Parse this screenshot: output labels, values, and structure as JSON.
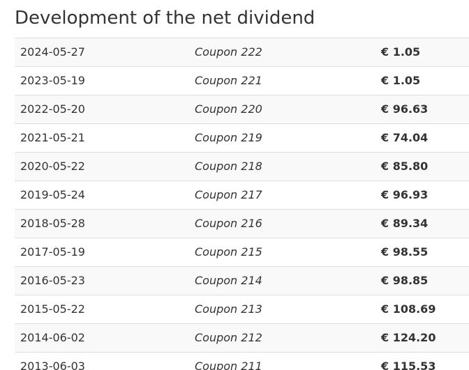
{
  "title": "Development of the net dividend",
  "dividends": [
    {
      "date": "2024-05-27",
      "coupon": "Coupon 222",
      "amount": "€ 1.05"
    },
    {
      "date": "2023-05-19",
      "coupon": "Coupon 221",
      "amount": "€ 1.05"
    },
    {
      "date": "2022-05-20",
      "coupon": "Coupon 220",
      "amount": "€ 96.63"
    },
    {
      "date": "2021-05-21",
      "coupon": "Coupon 219",
      "amount": "€ 74.04"
    },
    {
      "date": "2020-05-22",
      "coupon": "Coupon 218",
      "amount": "€ 85.80"
    },
    {
      "date": "2019-05-24",
      "coupon": "Coupon 217",
      "amount": "€ 96.93"
    },
    {
      "date": "2018-05-28",
      "coupon": "Coupon 216",
      "amount": "€ 89.34"
    },
    {
      "date": "2017-05-19",
      "coupon": "Coupon 215",
      "amount": "€ 98.55"
    },
    {
      "date": "2016-05-23",
      "coupon": "Coupon 214",
      "amount": "€ 98.85"
    },
    {
      "date": "2015-05-22",
      "coupon": "Coupon 213",
      "amount": "€ 108.69"
    },
    {
      "date": "2014-06-02",
      "coupon": "Coupon 212",
      "amount": "€ 124.20"
    },
    {
      "date": "2013-06-03",
      "coupon": "Coupon 211",
      "amount": "€ 115.53"
    }
  ]
}
